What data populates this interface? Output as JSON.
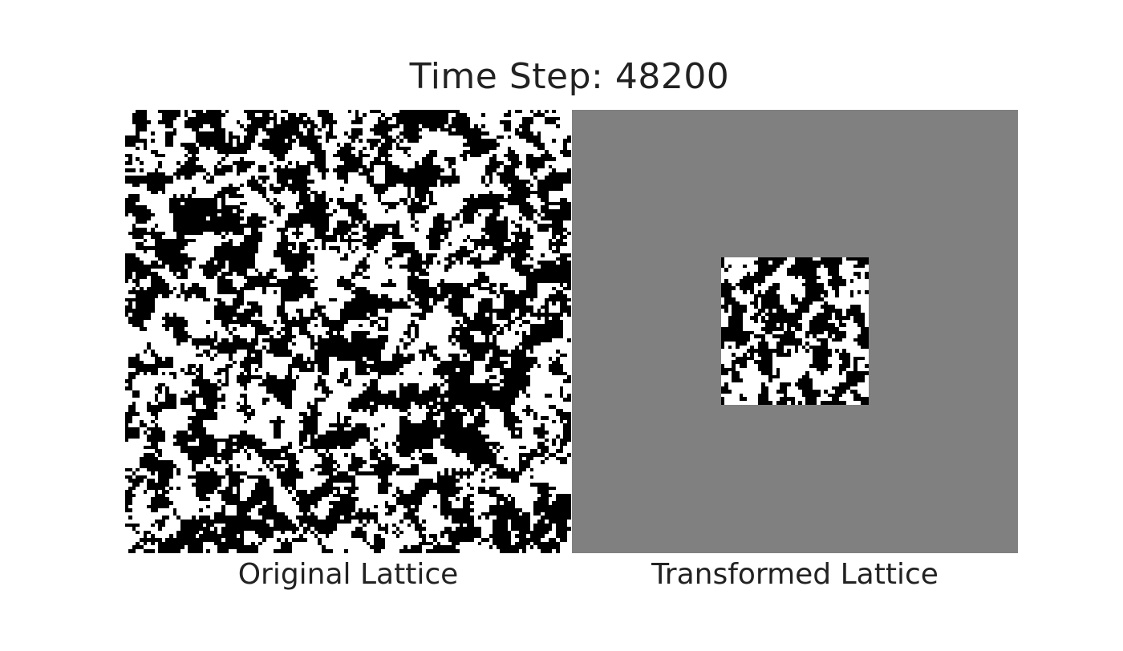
{
  "title": "Time Step: 48200",
  "panels": [
    {
      "label": "Original Lattice"
    },
    {
      "label": "Transformed Lattice"
    }
  ],
  "colors": {
    "spin_up": "#ffffff",
    "spin_down": "#000000",
    "background": "#808080"
  },
  "lattice": {
    "original_size": 120,
    "transformed_size": 40,
    "spin_fraction_up": 0.5
  }
}
